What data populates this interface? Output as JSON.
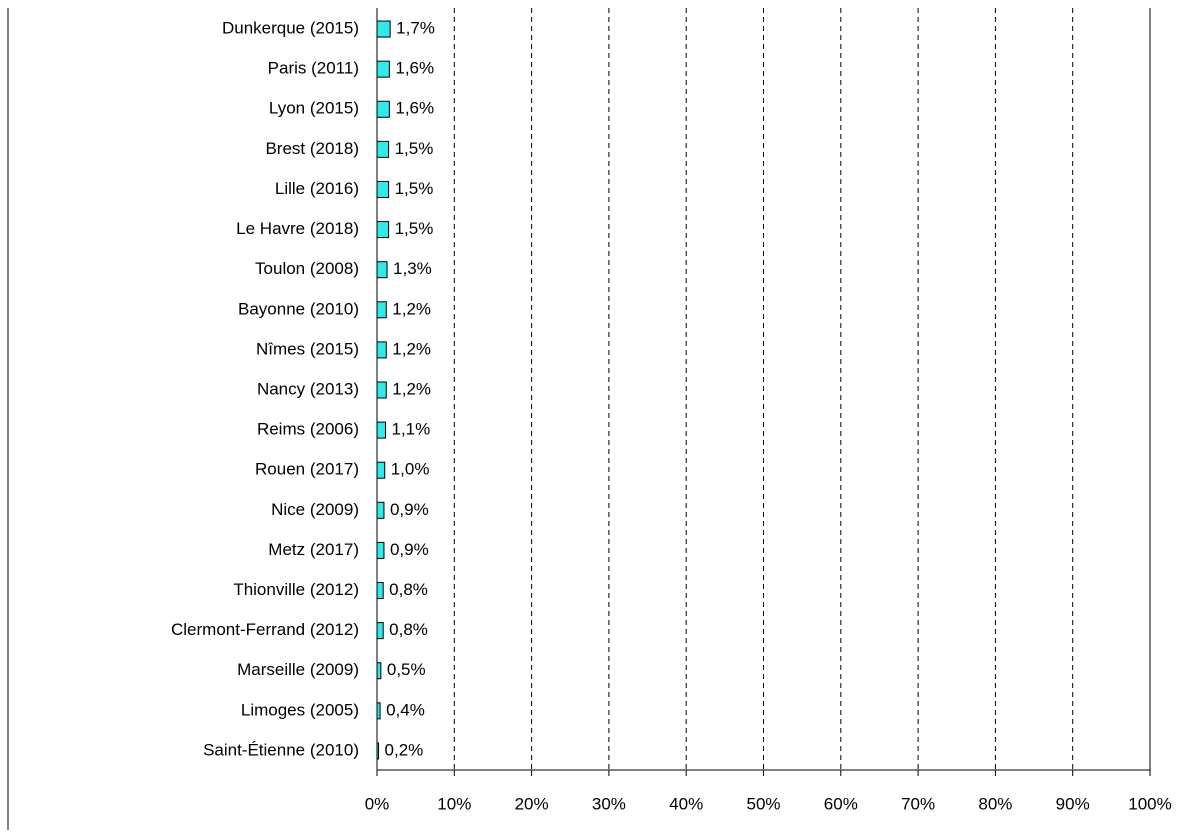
{
  "chart_data": {
    "type": "barh",
    "categories": [
      "Dunkerque (2015)",
      "Paris (2011)",
      "Lyon (2015)",
      "Brest (2018)",
      "Lille (2016)",
      "Le Havre (2018)",
      "Toulon (2008)",
      "Bayonne (2010)",
      "Nîmes (2015)",
      "Nancy (2013)",
      "Reims (2006)",
      "Rouen (2017)",
      "Nice (2009)",
      "Metz (2017)",
      "Thionville (2012)",
      "Clermont-Ferrand (2012)",
      "Marseille (2009)",
      "Limoges (2005)",
      "Saint-Étienne (2010)"
    ],
    "values": [
      1.7,
      1.6,
      1.6,
      1.5,
      1.5,
      1.5,
      1.3,
      1.2,
      1.2,
      1.2,
      1.1,
      1.0,
      0.9,
      0.9,
      0.8,
      0.8,
      0.5,
      0.4,
      0.2
    ],
    "value_labels": [
      "1,7%",
      "1,6%",
      "1,6%",
      "1,5%",
      "1,5%",
      "1,5%",
      "1,3%",
      "1,2%",
      "1,2%",
      "1,2%",
      "1,1%",
      "1,0%",
      "0,9%",
      "0,9%",
      "0,8%",
      "0,8%",
      "0,5%",
      "0,4%",
      "0,2%"
    ],
    "color": "#33e8e8",
    "xlim": [
      0,
      100
    ],
    "xticks": [
      {
        "value": 0,
        "label": "0%"
      },
      {
        "value": 10,
        "label": "10%"
      },
      {
        "value": 20,
        "label": "20%"
      },
      {
        "value": 30,
        "label": "30%"
      },
      {
        "value": 40,
        "label": "40%"
      },
      {
        "value": 50,
        "label": "50%"
      },
      {
        "value": 60,
        "label": "60%"
      },
      {
        "value": 70,
        "label": "70%"
      },
      {
        "value": 80,
        "label": "80%"
      },
      {
        "value": 90,
        "label": "90%"
      },
      {
        "value": 100,
        "label": "100%"
      }
    ],
    "grid": true
  }
}
